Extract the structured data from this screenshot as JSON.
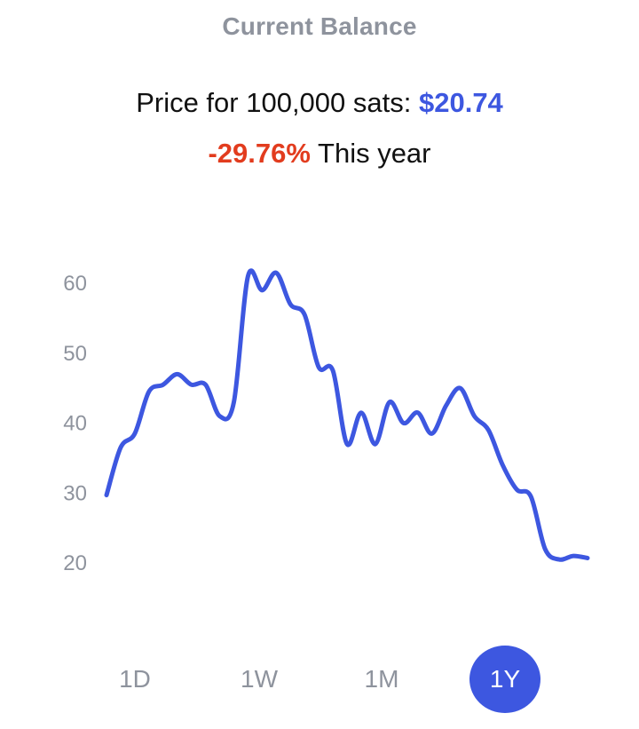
{
  "header": {
    "title": "Current Balance"
  },
  "price": {
    "label": "Price for 100,000 sats:",
    "value": "$20.74",
    "value_color": "#3d57e0"
  },
  "change": {
    "value": "-29.76%",
    "period": "This year",
    "value_color": "#e23c1e"
  },
  "ranges": {
    "items": [
      "1D",
      "1W",
      "1M",
      "1Y"
    ],
    "selected": "1Y",
    "accent_color": "#3d57e0"
  },
  "chart_data": {
    "type": "line",
    "title": "",
    "xlabel": "",
    "ylabel": "",
    "ylim": [
      10,
      63
    ],
    "yticks": [
      "60",
      "50",
      "40",
      "30",
      "20"
    ],
    "grid": false,
    "line_color": "#3d57e0",
    "series": [
      {
        "values": [
          29.7,
          36.5,
          38.5,
          44.5,
          45.5,
          47.0,
          45.5,
          45.5,
          41.0,
          43.0,
          61.0,
          59.0,
          61.5,
          57.0,
          55.5,
          48.0,
          47.5,
          37.0,
          41.5,
          37.0,
          43.0,
          40.0,
          41.5,
          38.5,
          42.5,
          45.0,
          41.0,
          39.0,
          34.0,
          30.5,
          29.5,
          22.0,
          20.5,
          21.0,
          20.7
        ]
      }
    ]
  }
}
